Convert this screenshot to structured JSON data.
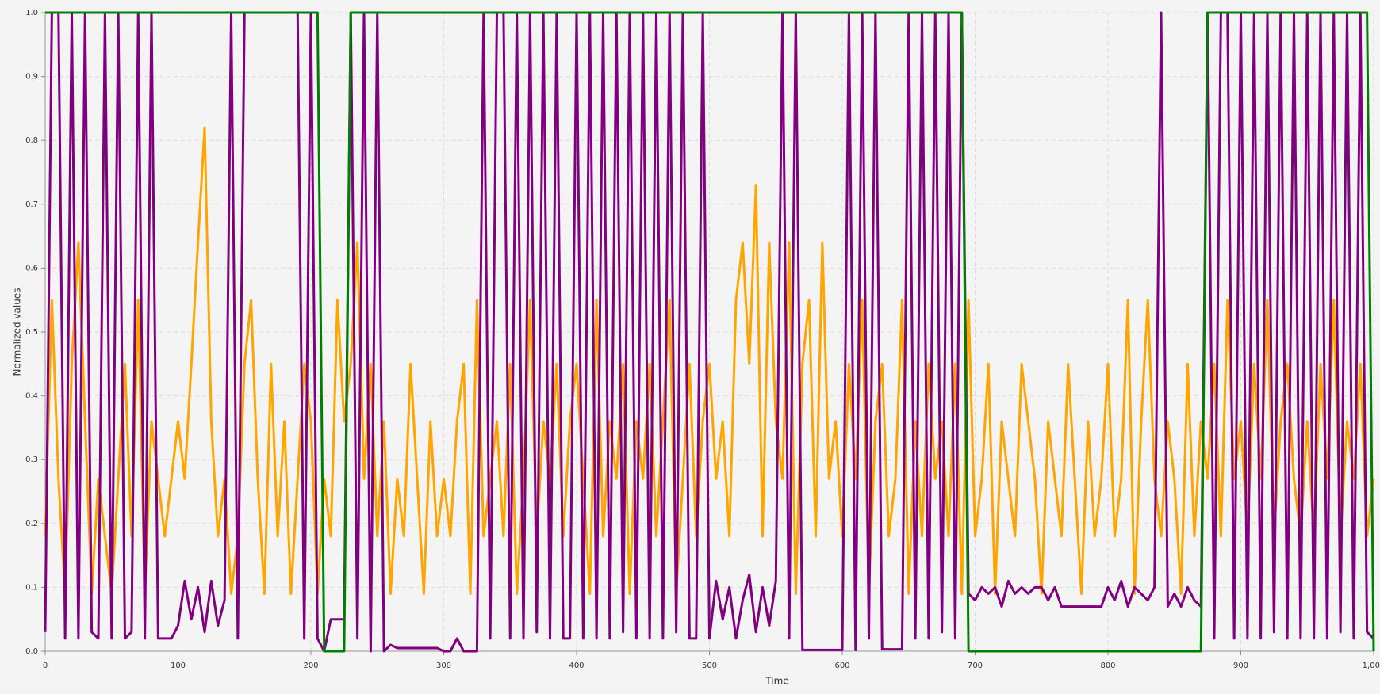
{
  "chart_data": {
    "type": "line",
    "xlabel": "Time",
    "ylabel": "Normalized values",
    "x": [
      0,
      5,
      10,
      15,
      20,
      25,
      30,
      35,
      40,
      45,
      50,
      55,
      60,
      65,
      70,
      75,
      80,
      85,
      90,
      95,
      100,
      105,
      110,
      115,
      120,
      125,
      130,
      135,
      140,
      145,
      150,
      155,
      160,
      165,
      170,
      175,
      180,
      185,
      190,
      195,
      200,
      205,
      210,
      215,
      220,
      225,
      230,
      235,
      240,
      245,
      250,
      255,
      260,
      265,
      270,
      275,
      280,
      285,
      290,
      295,
      300,
      305,
      310,
      315,
      320,
      325,
      330,
      335,
      340,
      345,
      350,
      355,
      360,
      365,
      370,
      375,
      380,
      385,
      390,
      395,
      400,
      405,
      410,
      415,
      420,
      425,
      430,
      435,
      440,
      445,
      450,
      455,
      460,
      465,
      470,
      475,
      480,
      485,
      490,
      495,
      500,
      505,
      510,
      515,
      520,
      525,
      530,
      535,
      540,
      545,
      550,
      555,
      560,
      565,
      570,
      575,
      580,
      585,
      590,
      595,
      600,
      605,
      610,
      615,
      620,
      625,
      630,
      635,
      640,
      645,
      650,
      655,
      660,
      665,
      670,
      675,
      680,
      685,
      690,
      695,
      700,
      705,
      710,
      715,
      720,
      725,
      730,
      735,
      740,
      745,
      750,
      755,
      760,
      765,
      770,
      775,
      780,
      785,
      790,
      795,
      800,
      805,
      810,
      815,
      820,
      825,
      830,
      835,
      840,
      845,
      850,
      855,
      860,
      865,
      870,
      875,
      880,
      885,
      890,
      895,
      900,
      905,
      910,
      915,
      920,
      925,
      930,
      935,
      940,
      945,
      950,
      955,
      960,
      965,
      970,
      975,
      980,
      985,
      990,
      995,
      1000
    ],
    "series": [
      {
        "color": "#ffa500",
        "values": [
          0.18,
          0.55,
          0.27,
          0.09,
          0.45,
          0.64,
          0.36,
          0.09,
          0.27,
          0.18,
          0.09,
          0.27,
          0.45,
          0.18,
          0.55,
          0.09,
          0.36,
          0.27,
          0.18,
          0.27,
          0.36,
          0.27,
          0.45,
          0.64,
          0.82,
          0.36,
          0.18,
          0.27,
          0.09,
          0.18,
          0.45,
          0.55,
          0.27,
          0.09,
          0.45,
          0.18,
          0.36,
          0.09,
          0.27,
          0.45,
          0.36,
          0.09,
          0.27,
          0.18,
          0.55,
          0.36,
          0.45,
          0.64,
          0.27,
          0.45,
          0.18,
          0.36,
          0.09,
          0.27,
          0.18,
          0.45,
          0.27,
          0.09,
          0.36,
          0.18,
          0.27,
          0.18,
          0.36,
          0.45,
          0.09,
          0.55,
          0.18,
          0.27,
          0.36,
          0.18,
          0.45,
          0.09,
          0.27,
          0.55,
          0.18,
          0.36,
          0.27,
          0.45,
          0.18,
          0.36,
          0.45,
          0.27,
          0.09,
          0.55,
          0.18,
          0.36,
          0.27,
          0.45,
          0.09,
          0.36,
          0.27,
          0.45,
          0.18,
          0.36,
          0.55,
          0.09,
          0.27,
          0.45,
          0.18,
          0.36,
          0.45,
          0.27,
          0.36,
          0.18,
          0.55,
          0.64,
          0.45,
          0.73,
          0.18,
          0.64,
          0.36,
          0.27,
          0.64,
          0.09,
          0.45,
          0.55,
          0.18,
          0.64,
          0.27,
          0.36,
          0.18,
          0.45,
          0.27,
          0.55,
          0.09,
          0.36,
          0.45,
          0.18,
          0.27,
          0.55,
          0.09,
          0.36,
          0.18,
          0.45,
          0.27,
          0.36,
          0.18,
          0.45,
          0.09,
          0.55,
          0.18,
          0.27,
          0.45,
          0.09,
          0.36,
          0.27,
          0.18,
          0.45,
          0.36,
          0.27,
          0.09,
          0.36,
          0.27,
          0.18,
          0.45,
          0.27,
          0.09,
          0.36,
          0.18,
          0.27,
          0.45,
          0.18,
          0.27,
          0.55,
          0.09,
          0.36,
          0.55,
          0.27,
          0.18,
          0.36,
          0.27,
          0.09,
          0.45,
          0.18,
          0.36,
          0.27,
          0.45,
          0.18,
          0.55,
          0.27,
          0.36,
          0.18,
          0.45,
          0.27,
          0.55,
          0.18,
          0.36,
          0.45,
          0.27,
          0.18,
          0.36,
          0.18,
          0.45,
          0.27,
          0.55,
          0.18,
          0.36,
          0.27,
          0.45,
          0.18,
          0.27
        ]
      },
      {
        "color": "#800080",
        "values": [
          0.03,
          1,
          1,
          0.02,
          1,
          0.02,
          1,
          0.03,
          0.02,
          1,
          0.02,
          1,
          0.02,
          0.03,
          1,
          0.02,
          1,
          0.02,
          0.02,
          0.02,
          0.04,
          0.11,
          0.05,
          0.1,
          0.03,
          0.11,
          0.04,
          0.08,
          1,
          0.02,
          1,
          1,
          1,
          1,
          1,
          1,
          1,
          1,
          1,
          0.02,
          1,
          0.02,
          0,
          0.05,
          0.05,
          0.05,
          1,
          0.02,
          1,
          0,
          1,
          0,
          0.01,
          0.005,
          0.005,
          0.005,
          0.005,
          0.005,
          0.005,
          0.005,
          0,
          0,
          0.02,
          0,
          0,
          0,
          1,
          0.02,
          1,
          1,
          0.02,
          1,
          0.02,
          1,
          0.03,
          1,
          0.02,
          1,
          0.02,
          0.02,
          1,
          0.02,
          1,
          0.02,
          1,
          0.02,
          1,
          0.03,
          1,
          0.02,
          1,
          0.02,
          1,
          0.02,
          1,
          0.03,
          1,
          0.02,
          0.02,
          1,
          0.02,
          0.11,
          0.05,
          0.1,
          0.02,
          0.08,
          0.12,
          0.03,
          0.1,
          0.04,
          0.11,
          1,
          0.02,
          1,
          0.002,
          0.002,
          0.002,
          0.002,
          0.002,
          0.002,
          0.002,
          1,
          0.002,
          1,
          0.02,
          1,
          0.003,
          0.003,
          0.003,
          0.003,
          1,
          0.02,
          1,
          0.02,
          1,
          0.03,
          1,
          0.02,
          1,
          0.09,
          0.08,
          0.1,
          0.09,
          0.1,
          0.07,
          0.11,
          0.09,
          0.1,
          0.09,
          0.1,
          0.1,
          0.08,
          0.1,
          0.07,
          0.07,
          0.07,
          0.07,
          0.07,
          0.07,
          0.07,
          0.1,
          0.08,
          0.11,
          0.07,
          0.1,
          0.09,
          0.08,
          0.1,
          1,
          0.07,
          0.09,
          0.07,
          0.1,
          0.08,
          0.07,
          1,
          0.02,
          1,
          1,
          0.02,
          1,
          0.02,
          1,
          0.02,
          1,
          0.03,
          1,
          0.02,
          1,
          0.02,
          1,
          0.02,
          1,
          0.02,
          1,
          0.03,
          1,
          0.02,
          1,
          0.03,
          0.02
        ]
      },
      {
        "color": "#008000",
        "values": [
          1,
          1,
          1,
          1,
          1,
          1,
          1,
          1,
          1,
          1,
          1,
          1,
          1,
          1,
          1,
          1,
          1,
          1,
          1,
          1,
          1,
          1,
          1,
          1,
          1,
          1,
          1,
          1,
          1,
          1,
          1,
          1,
          1,
          1,
          1,
          1,
          1,
          1,
          1,
          1,
          1,
          1,
          0,
          0,
          0,
          0,
          1,
          1,
          1,
          1,
          1,
          1,
          1,
          1,
          1,
          1,
          1,
          1,
          1,
          1,
          1,
          1,
          1,
          1,
          1,
          1,
          1,
          1,
          1,
          1,
          1,
          1,
          1,
          1,
          1,
          1,
          1,
          1,
          1,
          1,
          1,
          1,
          1,
          1,
          1,
          1,
          1,
          1,
          1,
          1,
          1,
          1,
          1,
          1,
          1,
          1,
          1,
          1,
          1,
          1,
          1,
          1,
          1,
          1,
          1,
          1,
          1,
          1,
          1,
          1,
          1,
          1,
          1,
          1,
          1,
          1,
          1,
          1,
          1,
          1,
          1,
          1,
          1,
          1,
          1,
          1,
          1,
          1,
          1,
          1,
          1,
          1,
          1,
          1,
          1,
          1,
          1,
          1,
          1,
          0,
          0,
          0,
          0,
          0,
          0,
          0,
          0,
          0,
          0,
          0,
          0,
          0,
          0,
          0,
          0,
          0,
          0,
          0,
          0,
          0,
          0,
          0,
          0,
          0,
          0,
          0,
          0,
          0,
          0,
          0,
          0,
          0,
          0,
          0,
          0,
          1,
          1,
          1,
          1,
          1,
          1,
          1,
          1,
          1,
          1,
          1,
          1,
          1,
          1,
          1,
          1,
          1,
          1,
          1,
          1,
          1,
          1,
          1,
          1,
          1,
          0
        ]
      }
    ],
    "xlim": [
      0,
      1000
    ],
    "ylim": [
      0,
      1
    ],
    "xticks": [
      0,
      100,
      200,
      300,
      400,
      500,
      600,
      700,
      800,
      900,
      {
        "value": 1000,
        "label": "1,000"
      }
    ],
    "yticks": [
      {
        "value": 0,
        "label": "0.0"
      },
      0.1,
      0.2,
      0.3,
      0.4,
      0.5,
      0.6,
      0.7,
      0.8,
      0.9,
      {
        "value": 1,
        "label": "1.0"
      }
    ],
    "grid": true
  }
}
